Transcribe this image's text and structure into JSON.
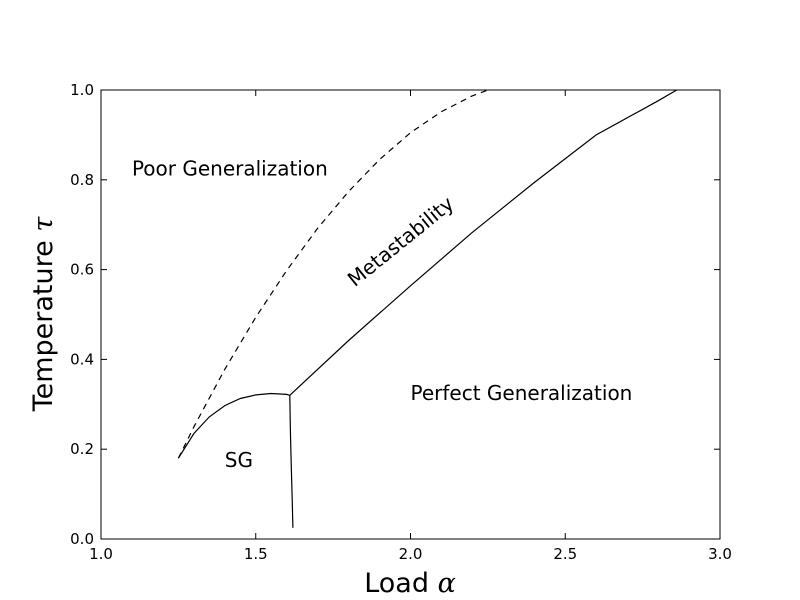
{
  "chart_data": {
    "type": "line",
    "title": "",
    "xlabel": "Load",
    "xlabel_symbol": "α",
    "ylabel": "Temperature",
    "ylabel_symbol": "τ",
    "xlim": [
      1.0,
      3.0
    ],
    "ylim": [
      0.0,
      1.0
    ],
    "x_ticks": [
      1.0,
      1.5,
      2.0,
      2.5,
      3.0
    ],
    "x_tick_labels": [
      "1.0",
      "1.5",
      "2.0",
      "2.5",
      "3.0"
    ],
    "y_ticks": [
      0.0,
      0.2,
      0.4,
      0.6,
      0.8,
      1.0
    ],
    "y_tick_labels": [
      "0.0",
      "0.2",
      "0.4",
      "0.6",
      "0.8",
      "1.0"
    ],
    "grid": false,
    "series": [
      {
        "style": "solid",
        "x": [
          1.25,
          1.3,
          1.35,
          1.4,
          1.45,
          1.5,
          1.55,
          1.6,
          1.61
        ],
        "y": [
          0.18,
          0.235,
          0.272,
          0.297,
          0.313,
          0.321,
          0.324,
          0.322,
          0.32
        ]
      },
      {
        "style": "solid",
        "x": [
          1.61,
          1.612,
          1.615,
          1.618,
          1.62
        ],
        "y": [
          0.32,
          0.24,
          0.16,
          0.08,
          0.025
        ]
      },
      {
        "style": "solid",
        "x": [
          1.61,
          1.8,
          2.0,
          2.2,
          2.4,
          2.6,
          2.8,
          2.86
        ],
        "y": [
          0.32,
          0.442,
          0.564,
          0.683,
          0.794,
          0.9,
          0.976,
          1.0
        ]
      },
      {
        "style": "dashed",
        "x": [
          1.25,
          1.3,
          1.4,
          1.5,
          1.6,
          1.7,
          1.8,
          1.9,
          2.0,
          2.1,
          2.2,
          2.25
        ],
        "y": [
          0.18,
          0.25,
          0.378,
          0.494,
          0.598,
          0.692,
          0.774,
          0.845,
          0.905,
          0.952,
          0.987,
          1.0
        ]
      }
    ],
    "annotations": [
      {
        "text": "Poor Generalization",
        "x": 1.1,
        "y": 0.81
      },
      {
        "text": "Metastability",
        "x": 1.82,
        "y": 0.56,
        "rotation": -39
      },
      {
        "text": "Perfect Generalization",
        "x": 2.0,
        "y": 0.31
      },
      {
        "text": "SG",
        "x": 1.4,
        "y": 0.16
      }
    ]
  }
}
